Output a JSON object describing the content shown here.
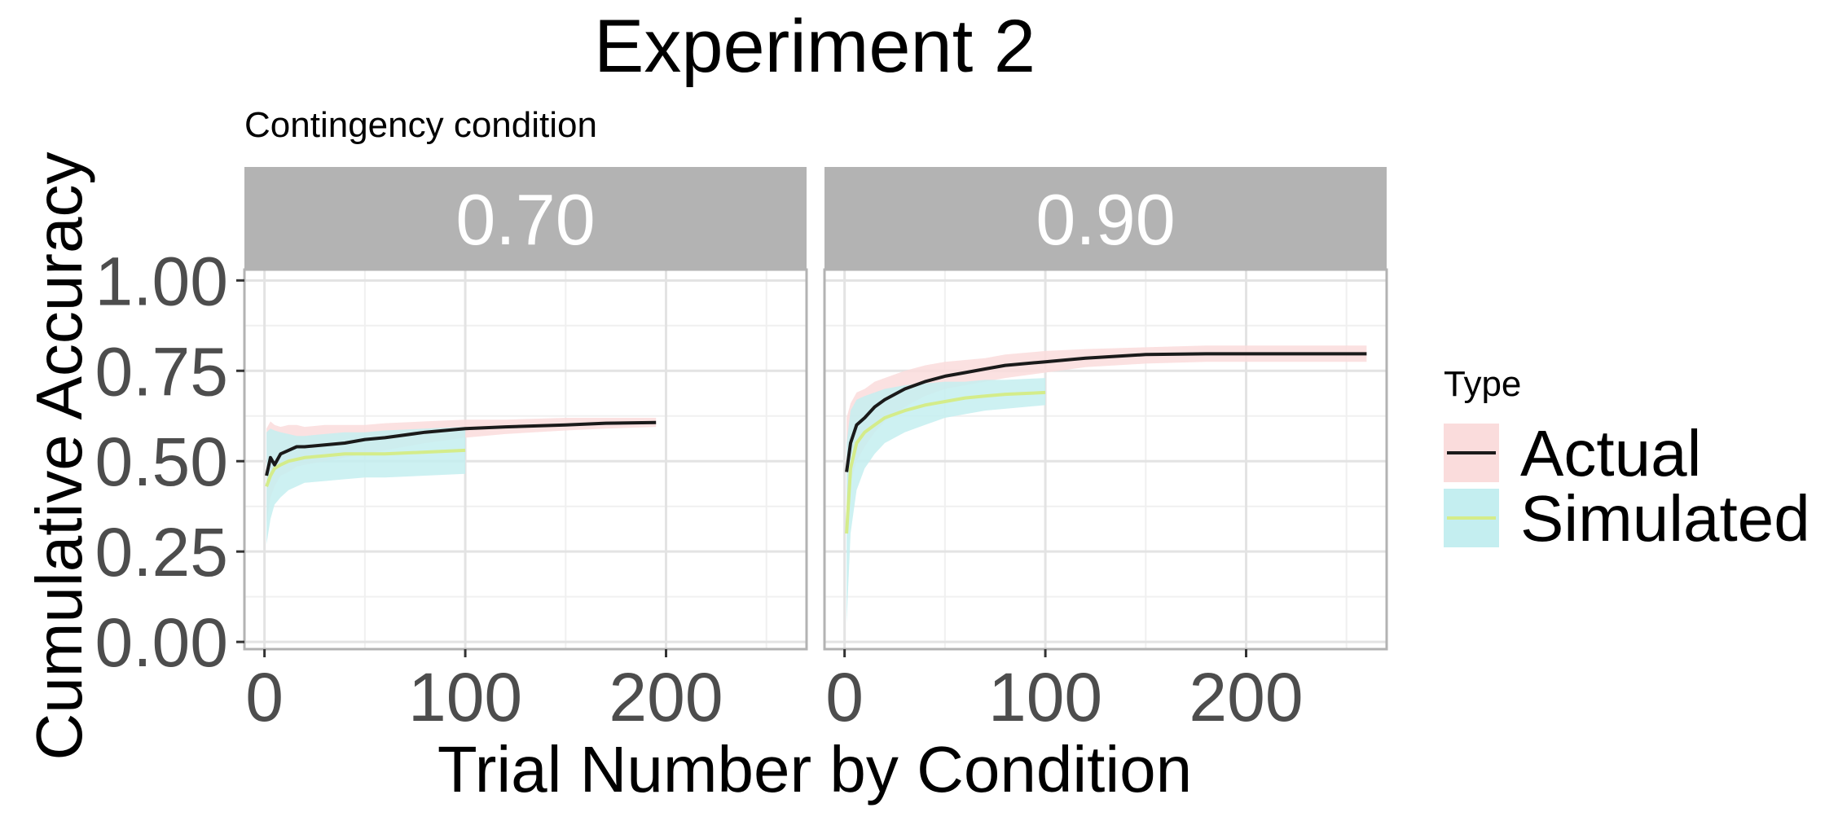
{
  "title": "Experiment 2",
  "subtitle": "Contingency condition",
  "chart_data": {
    "type": "line",
    "title": "Experiment 2",
    "subtitle": "Contingency condition",
    "xlabel": "Trial Number by Condition",
    "ylabel": "Cumulative Accuracy",
    "xlim": [
      -10,
      270
    ],
    "ylim": [
      -0.02,
      1.03
    ],
    "x_ticks": [
      0,
      100,
      200
    ],
    "x_tick_labels": [
      "0",
      "100",
      "200"
    ],
    "y_ticks": [
      0,
      0.25,
      0.5,
      0.75,
      1.0
    ],
    "y_tick_labels": [
      "0.00",
      "0.25",
      "0.50",
      "0.75",
      "1.00"
    ],
    "grid": true,
    "legend": {
      "title": "Type",
      "placement": "right",
      "entries": [
        {
          "label": "Actual",
          "line_color": "#1a1a1a",
          "fill_color": "#fadcdc"
        },
        {
          "label": "Simulated",
          "line_color": "#d4ec8a",
          "fill_color": "#c4eef0"
        }
      ]
    },
    "panels": [
      {
        "label": "0.70",
        "series": [
          {
            "name": "Actual",
            "x": [
              1,
              3,
              5,
              8,
              12,
              16,
              20,
              30,
              40,
              50,
              60,
              80,
              100,
              120,
              150,
              170,
              195
            ],
            "y": [
              0.46,
              0.51,
              0.49,
              0.52,
              0.53,
              0.54,
              0.54,
              0.545,
              0.55,
              0.56,
              0.565,
              0.58,
              0.59,
              0.595,
              0.6,
              0.605,
              0.607
            ],
            "lower": [
              0.33,
              0.4,
              0.43,
              0.46,
              0.47,
              0.485,
              0.49,
              0.5,
              0.51,
              0.52,
              0.53,
              0.55,
              0.565,
              0.575,
              0.585,
              0.59,
              0.595
            ],
            "upper": [
              0.59,
              0.61,
              0.6,
              0.595,
              0.6,
              0.6,
              0.595,
              0.6,
              0.6,
              0.6,
              0.605,
              0.61,
              0.615,
              0.615,
              0.62,
              0.62,
              0.62
            ]
          },
          {
            "name": "Simulated",
            "x": [
              1,
              3,
              5,
              8,
              12,
              16,
              20,
              30,
              40,
              50,
              60,
              80,
              100
            ],
            "y": [
              0.43,
              0.46,
              0.48,
              0.49,
              0.5,
              0.505,
              0.51,
              0.515,
              0.52,
              0.52,
              0.52,
              0.525,
              0.53
            ],
            "lower": [
              0.27,
              0.34,
              0.38,
              0.4,
              0.42,
              0.43,
              0.44,
              0.445,
              0.45,
              0.455,
              0.455,
              0.46,
              0.465
            ],
            "upper": [
              0.58,
              0.59,
              0.585,
              0.58,
              0.575,
              0.57,
              0.57,
              0.575,
              0.58,
              0.58,
              0.585,
              0.59,
              0.595
            ]
          }
        ]
      },
      {
        "label": "0.90",
        "series": [
          {
            "name": "Actual",
            "x": [
              1,
              3,
              6,
              10,
              15,
              20,
              30,
              40,
              50,
              60,
              70,
              80,
              100,
              120,
              150,
              180,
              210,
              240,
              260
            ],
            "y": [
              0.47,
              0.55,
              0.6,
              0.62,
              0.65,
              0.67,
              0.7,
              0.72,
              0.735,
              0.745,
              0.755,
              0.765,
              0.775,
              0.785,
              0.795,
              0.797,
              0.797,
              0.797,
              0.797
            ],
            "lower": [
              0.32,
              0.44,
              0.5,
              0.54,
              0.58,
              0.61,
              0.65,
              0.68,
              0.7,
              0.71,
              0.72,
              0.73,
              0.745,
              0.76,
              0.77,
              0.775,
              0.775,
              0.775,
              0.775
            ],
            "upper": [
              0.62,
              0.66,
              0.69,
              0.7,
              0.72,
              0.73,
              0.75,
              0.765,
              0.775,
              0.78,
              0.785,
              0.795,
              0.805,
              0.81,
              0.815,
              0.82,
              0.82,
              0.82,
              0.82
            ]
          },
          {
            "name": "Simulated",
            "x": [
              1,
              3,
              6,
              10,
              15,
              20,
              30,
              40,
              50,
              60,
              70,
              80,
              100
            ],
            "y": [
              0.3,
              0.48,
              0.55,
              0.58,
              0.6,
              0.62,
              0.64,
              0.655,
              0.665,
              0.675,
              0.68,
              0.685,
              0.69
            ],
            "lower": [
              0.05,
              0.3,
              0.42,
              0.48,
              0.52,
              0.55,
              0.58,
              0.6,
              0.62,
              0.63,
              0.64,
              0.645,
              0.655
            ],
            "upper": [
              0.55,
              0.64,
              0.67,
              0.68,
              0.69,
              0.7,
              0.71,
              0.715,
              0.72,
              0.72,
              0.725,
              0.725,
              0.73
            ]
          }
        ]
      }
    ]
  }
}
